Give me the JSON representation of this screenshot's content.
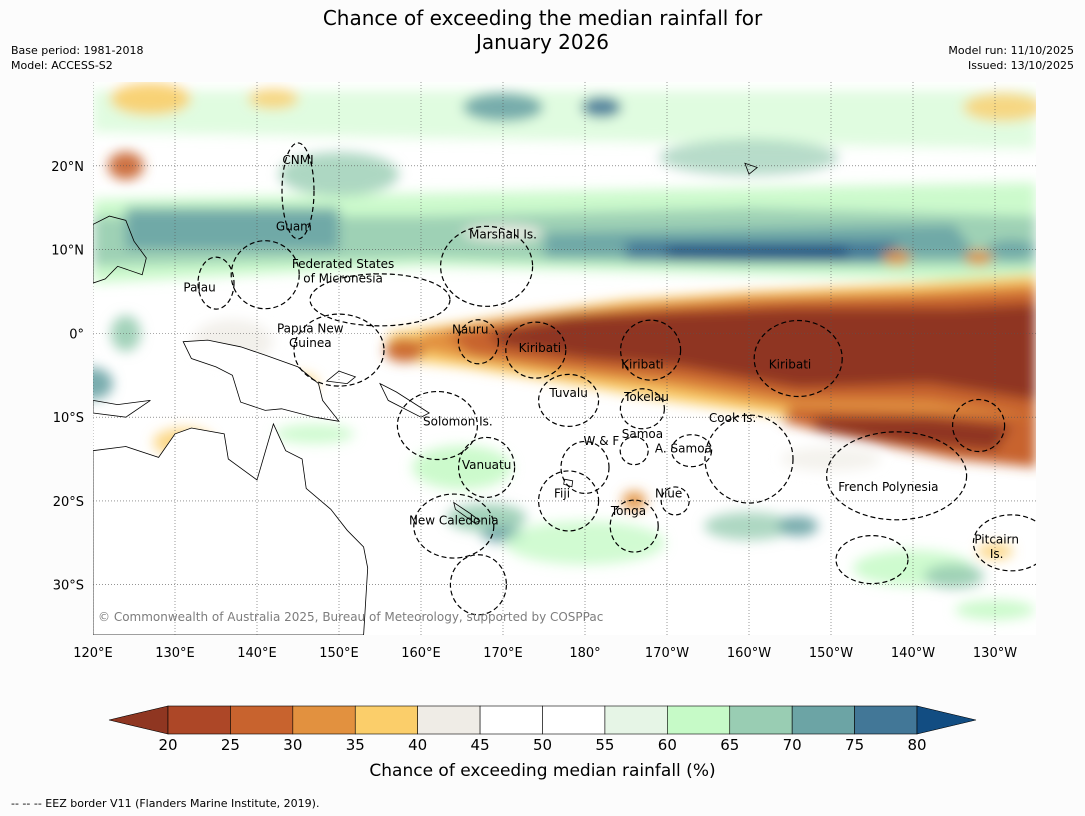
{
  "title": {
    "line1": "Chance of exceeding the median rainfall for",
    "line2": "January 2026"
  },
  "meta": {
    "base_period": "Base period: 1981-2018",
    "model": "Model: ACCESS-S2",
    "model_run": "Model run: 11/10/2025",
    "issued": "Issued: 13/10/2025"
  },
  "copyright": "© Commonwealth of Australia 2025, Bureau of Meteorology, supported by COSPPac",
  "map": {
    "lon_range": [
      120,
      235
    ],
    "lat_range": [
      -36,
      30
    ],
    "lon_ticks": [
      {
        "lon": 120,
        "label": "120°E"
      },
      {
        "lon": 130,
        "label": "130°E"
      },
      {
        "lon": 140,
        "label": "140°E"
      },
      {
        "lon": 150,
        "label": "150°E"
      },
      {
        "lon": 160,
        "label": "160°E"
      },
      {
        "lon": 170,
        "label": "170°E"
      },
      {
        "lon": 180,
        "label": "180°"
      },
      {
        "lon": 190,
        "label": "170°W"
      },
      {
        "lon": 200,
        "label": "160°W"
      },
      {
        "lon": 210,
        "label": "150°W"
      },
      {
        "lon": 220,
        "label": "140°W"
      },
      {
        "lon": 230,
        "label": "130°W"
      }
    ],
    "lat_ticks": [
      {
        "lat": 20,
        "label": "20°N"
      },
      {
        "lat": 10,
        "label": "10°N"
      },
      {
        "lat": 0,
        "label": "0°"
      },
      {
        "lat": -10,
        "label": "10°S"
      },
      {
        "lat": -20,
        "label": "20°S"
      },
      {
        "lat": -30,
        "label": "30°S"
      }
    ],
    "regions": [
      {
        "name": "CNMI",
        "lon": 145,
        "lat": 20.2
      },
      {
        "name": "Guam",
        "lon": 144.5,
        "lat": 12.3
      },
      {
        "name": "Marshall Is.",
        "lon": 170,
        "lat": 11.3
      },
      {
        "name": "Federated States",
        "lon": 150.5,
        "lat": 7.8
      },
      {
        "name": "of Micronesia",
        "lon": 150.5,
        "lat": 6.1
      },
      {
        "name": "Palau",
        "lon": 133,
        "lat": 5.0
      },
      {
        "name": "Papua New",
        "lon": 146.5,
        "lat": 0.1
      },
      {
        "name": "Guinea",
        "lon": 146.5,
        "lat": -1.6
      },
      {
        "name": "Nauru",
        "lon": 166,
        "lat": 0.0
      },
      {
        "name": "Kiribati",
        "lon": 174.5,
        "lat": -2.2
      },
      {
        "name": "Kiribati",
        "lon": 187,
        "lat": -4.2
      },
      {
        "name": "Kiribati",
        "lon": 205,
        "lat": -4.2
      },
      {
        "name": "Tuvalu",
        "lon": 178,
        "lat": -7.6
      },
      {
        "name": "Tokelau",
        "lon": 187.5,
        "lat": -8.1
      },
      {
        "name": "Solomon Is.",
        "lon": 164.5,
        "lat": -11.0
      },
      {
        "name": "Cook Is.",
        "lon": 198,
        "lat": -10.6
      },
      {
        "name": "Samoa",
        "lon": 187,
        "lat": -12.5
      },
      {
        "name": "W & F",
        "lon": 182,
        "lat": -13.3
      },
      {
        "name": "A. Samoa",
        "lon": 192,
        "lat": -14.2
      },
      {
        "name": "Vanuatu",
        "lon": 168,
        "lat": -16.2
      },
      {
        "name": "French Polynesia",
        "lon": 217,
        "lat": -18.8
      },
      {
        "name": "Fiji",
        "lon": 177.2,
        "lat": -19.6
      },
      {
        "name": "Niue",
        "lon": 190.2,
        "lat": -19.6
      },
      {
        "name": "Tonga",
        "lon": 185.3,
        "lat": -21.7
      },
      {
        "name": "New Caledonia",
        "lon": 164,
        "lat": -22.8
      },
      {
        "name": "Pitcairn",
        "lon": 230.2,
        "lat": -25.1
      },
      {
        "name": "Is.",
        "lon": 230.2,
        "lat": -26.8
      }
    ]
  },
  "colorbar": {
    "title": "Chance of exceeding median rainfall (%)",
    "ticks": [
      "20",
      "25",
      "30",
      "35",
      "40",
      "45",
      "50",
      "55",
      "60",
      "65",
      "70",
      "75",
      "80"
    ],
    "under_color": "#8f3621",
    "over_color": "#124d82",
    "colors": [
      "#ad4727",
      "#c8632e",
      "#e2913f",
      "#fbce6a",
      "#efece6",
      "#ffffff",
      "#ffffff",
      "#e6f5e6",
      "#c6fac7",
      "#99cdb3",
      "#6ca4a5",
      "#427797"
    ]
  },
  "footer": "--  --  -- EEZ border V11 (Flanders Marine Institute, 2019)."
}
